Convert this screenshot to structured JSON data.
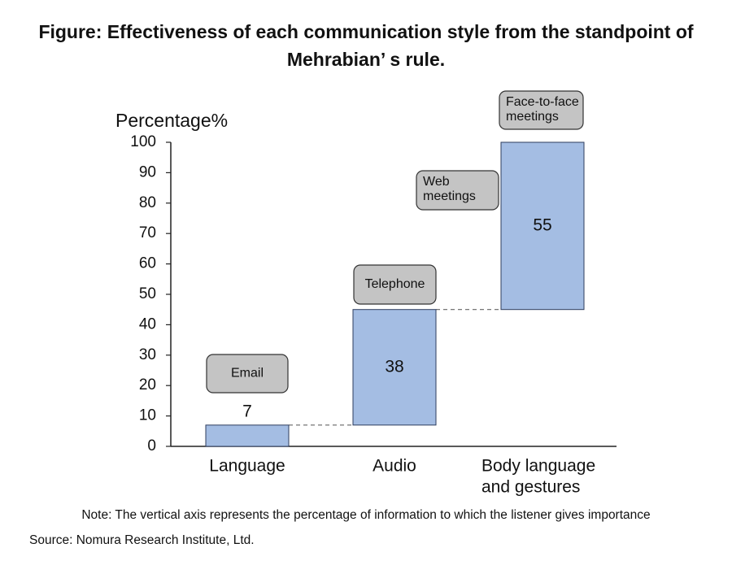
{
  "title": {
    "line1": "Figure: Effectiveness of each communication style from the standpoint of",
    "line2": "Mehrabian’ s rule."
  },
  "note": "Note: The vertical axis represents the percentage of information to which the listener gives importance",
  "source": "Source: Nomura Research Institute, Ltd.",
  "colors": {
    "bar": "#a4bde3",
    "bar_edge": "#2e3d5e",
    "tag_fill": "#c4c4c4",
    "tag_edge": "#333333",
    "axis": "#222222",
    "connector": "#666666"
  },
  "chart_data": {
    "type": "bar",
    "subtype": "waterfall",
    "ylabel": "Percentage%",
    "ylim": [
      0,
      100
    ],
    "yticks": [
      0,
      10,
      20,
      30,
      40,
      50,
      60,
      70,
      80,
      90,
      100
    ],
    "grid": false,
    "categories": [
      {
        "label": [
          "Language"
        ],
        "start": 0,
        "end": 7,
        "value_label": "7",
        "value_label_position": "above"
      },
      {
        "label": [
          "Audio"
        ],
        "start": 7,
        "end": 45,
        "value_label": "38",
        "value_label_position": "inside"
      },
      {
        "label": [
          "Body language",
          "and gestures"
        ],
        "start": 45,
        "end": 100,
        "value_label": "55",
        "value_label_position": "inside"
      }
    ],
    "connectors": [
      {
        "from": 0,
        "to": 1,
        "y": 7
      },
      {
        "from": 1,
        "to": 2,
        "y": 45
      }
    ],
    "annotations": [
      {
        "text": [
          "Email"
        ],
        "near": "Language"
      },
      {
        "text": [
          "Telephone"
        ],
        "near": "Audio"
      },
      {
        "text": [
          "Web",
          "meetings"
        ],
        "near": "Body language and gestures"
      },
      {
        "text": [
          "Face-to-face",
          "meetings"
        ],
        "near": "Body language and gestures"
      }
    ]
  }
}
